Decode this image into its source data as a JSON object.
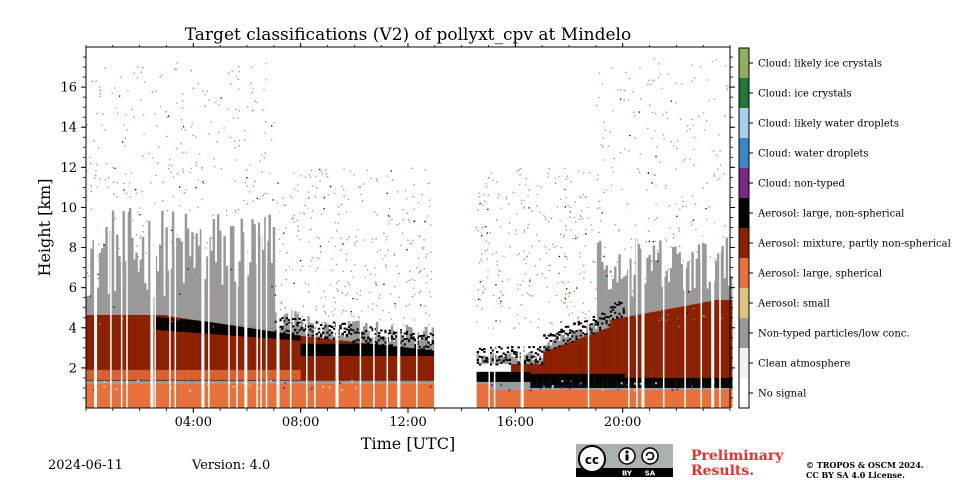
{
  "chart_data": {
    "type": "heatmap",
    "title": "Target classifications (V2) of pollyxt_cpv at Mindelo",
    "xlabel": "Time [UTC]",
    "ylabel": "Height [km]",
    "xlim": [
      0,
      24
    ],
    "ylim": [
      0,
      18
    ],
    "x_ticks": [
      "04:00",
      "08:00",
      "12:00",
      "16:00",
      "20:00"
    ],
    "y_ticks": [
      "2",
      "4",
      "6",
      "8",
      "10",
      "12",
      "14",
      "16"
    ],
    "x_tick_values": [
      4,
      8,
      12,
      16,
      20
    ],
    "y_tick_values": [
      2,
      4,
      6,
      8,
      10,
      12,
      14,
      16
    ],
    "no_data_gap_hours": [
      12.9,
      14.5
    ],
    "legend": [
      {
        "label": "Cloud: likely ice crystals",
        "color": "#8fb060"
      },
      {
        "label": "Cloud: ice crystals",
        "color": "#1b7837"
      },
      {
        "label": "Cloud: likely water droplets",
        "color": "#a6d0f2"
      },
      {
        "label": "Cloud: water droplets",
        "color": "#3a86c8"
      },
      {
        "label": "Cloud: non-typed",
        "color": "#762a83"
      },
      {
        "label": "Aerosol: large, non-spherical",
        "color": "#000000"
      },
      {
        "label": "Aerosol: mixture, partly non-spherical",
        "color": "#8b2102"
      },
      {
        "label": "Aerosol: large, spherical",
        "color": "#e8703a"
      },
      {
        "label": "Aerosol: small",
        "color": "#e0c47a"
      },
      {
        "label": "Non-typed particles/low conc.",
        "color": "#999999"
      },
      {
        "label": "Clean atmosphere",
        "color": "#f2f2f2"
      },
      {
        "label": "No signal",
        "color": "#ffffff"
      }
    ]
  },
  "footer": {
    "date": "2024-06-11",
    "version": "Version: 4.0",
    "preliminary_line1": "Preliminary",
    "preliminary_line2": "Results.",
    "copyright_line1": "© TROPOS & OSCM 2024.",
    "copyright_line2": "CC BY SA 4.0 License.",
    "cc_by": "BY",
    "cc_sa": "SA",
    "cc_mark": "cc"
  }
}
